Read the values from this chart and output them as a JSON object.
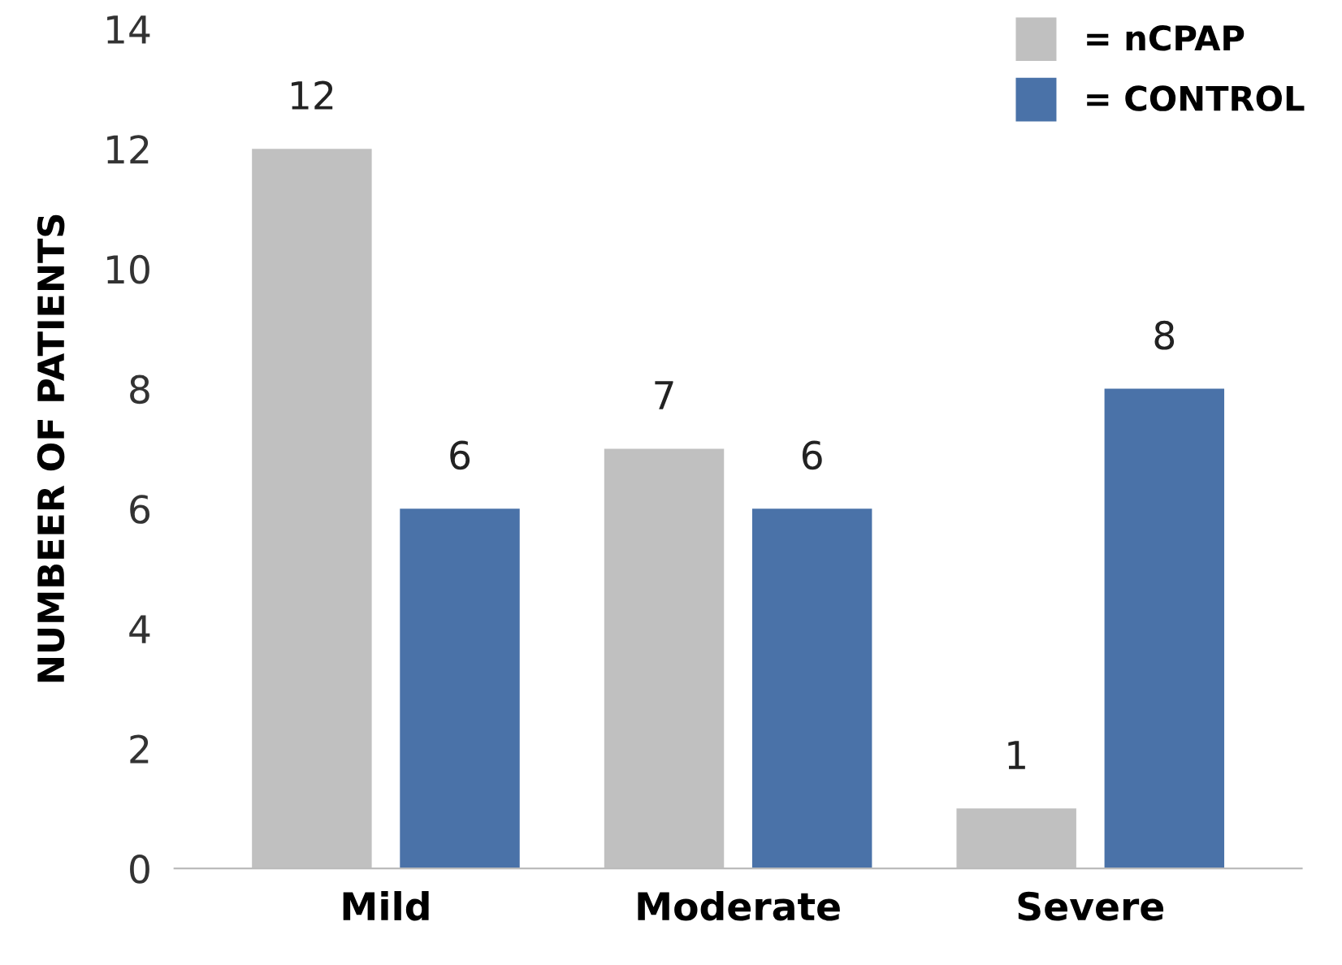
{
  "chart_data": {
    "type": "bar",
    "ylabel": "NUMBEER OF PATIENTS",
    "categories": [
      "Mild",
      "Moderate",
      "Severe"
    ],
    "series": [
      {
        "name": "= nCPAP",
        "color": "#c0c0c0",
        "values": [
          12,
          7,
          1
        ]
      },
      {
        "name": "= CONTROL",
        "color": "#4a72a8",
        "values": [
          6,
          6,
          8
        ]
      }
    ],
    "ylim": [
      0,
      14
    ],
    "yticks": [
      0,
      2,
      4,
      6,
      8,
      10,
      12,
      14
    ],
    "data_labels": true,
    "legend": "top right",
    "grid": false
  }
}
